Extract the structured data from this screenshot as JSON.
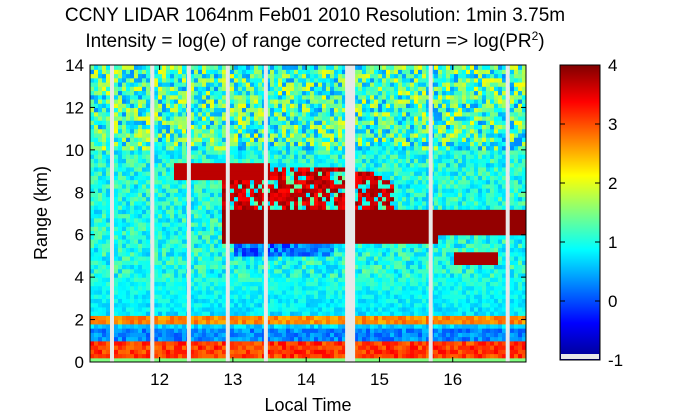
{
  "chart_data": {
    "type": "heatmap",
    "title_line1": "CCNY LIDAR 1064nm Feb01 2010 Resolution: 1min 3.75m",
    "title_line2_prefix": "Intensity = log(e) of range corrected return => log(PR",
    "title_line2_sup": "2",
    "title_line2_suffix": ")",
    "xlabel": "Local Time",
    "ylabel": "Range (km)",
    "xlim": [
      11.05,
      17.0
    ],
    "ylim": [
      0,
      14
    ],
    "xticks": [
      12,
      13,
      14,
      15,
      16
    ],
    "xtick_labels": [
      "12",
      "13",
      "14",
      "15",
      "16"
    ],
    "yticks": [
      0,
      2,
      4,
      6,
      8,
      10,
      12,
      14
    ],
    "ytick_labels": [
      "0",
      "2",
      "4",
      "6",
      "8",
      "10",
      "12",
      "14"
    ],
    "colorbar": {
      "colormap": "jet",
      "clim": [
        -1,
        4
      ],
      "ticks": [
        -1,
        0,
        1,
        2,
        3,
        4
      ],
      "tick_labels": [
        "-1",
        "0",
        "1",
        "2",
        "3",
        "4"
      ]
    },
    "description_regions": {
      "boundary_layer_km": [
        0.2,
        1.1
      ],
      "aerosol_layer_km": 2.0,
      "cloud_layer_km": [
        5.5,
        9.5
      ],
      "cloud_time_range": [
        12.85,
        17.0
      ]
    },
    "gaps_local_time": [
      11.35,
      11.9,
      12.4,
      12.93,
      13.45,
      14.6,
      15.7,
      16.75
    ]
  },
  "colors": {
    "background": "#ffffff",
    "gap": "#e8e8e8"
  }
}
